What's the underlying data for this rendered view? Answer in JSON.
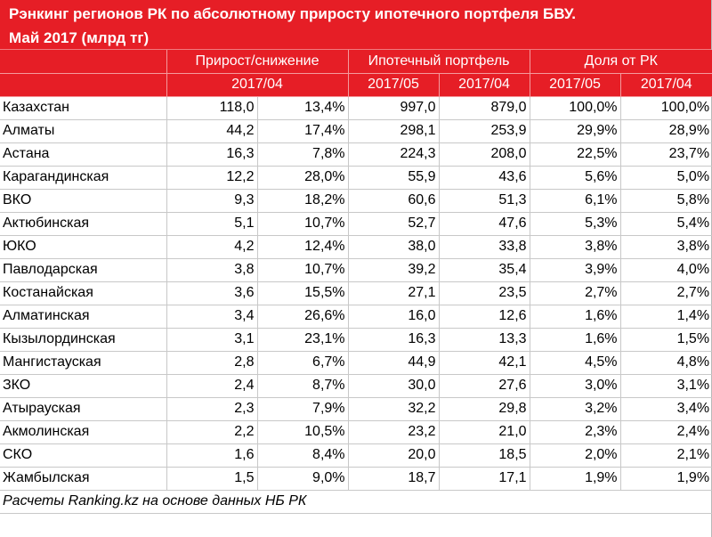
{
  "title": {
    "line1": "Рэнкинг регионов РК по абсолютному приросту ипотечного портфеля БВУ.",
    "line2": "Май 2017 (млрд тг)"
  },
  "header": {
    "group1": "Прирост/снижение",
    "group1_sub": "2017/04",
    "group2": "Ипотечный портфель",
    "group2_sub1": "2017/05",
    "group2_sub2": "2017/04",
    "group3": "Доля от РК",
    "group3_sub1": "2017/05",
    "group3_sub2": "2017/04"
  },
  "rows": [
    {
      "region": "Казахстан",
      "abs": "118,0",
      "pct": "13,4%",
      "p05": "997,0",
      "p04": "879,0",
      "s05": "100,0%",
      "s04": "100,0%"
    },
    {
      "region": "Алматы",
      "abs": "44,2",
      "pct": "17,4%",
      "p05": "298,1",
      "p04": "253,9",
      "s05": "29,9%",
      "s04": "28,9%"
    },
    {
      "region": "Астана",
      "abs": "16,3",
      "pct": "7,8%",
      "p05": "224,3",
      "p04": "208,0",
      "s05": "22,5%",
      "s04": "23,7%"
    },
    {
      "region": "Карагандинская",
      "abs": "12,2",
      "pct": "28,0%",
      "p05": "55,9",
      "p04": "43,6",
      "s05": "5,6%",
      "s04": "5,0%"
    },
    {
      "region": "ВКО",
      "abs": "9,3",
      "pct": "18,2%",
      "p05": "60,6",
      "p04": "51,3",
      "s05": "6,1%",
      "s04": "5,8%"
    },
    {
      "region": "Актюбинская",
      "abs": "5,1",
      "pct": "10,7%",
      "p05": "52,7",
      "p04": "47,6",
      "s05": "5,3%",
      "s04": "5,4%"
    },
    {
      "region": "ЮКО",
      "abs": "4,2",
      "pct": "12,4%",
      "p05": "38,0",
      "p04": "33,8",
      "s05": "3,8%",
      "s04": "3,8%"
    },
    {
      "region": "Павлодарская",
      "abs": "3,8",
      "pct": "10,7%",
      "p05": "39,2",
      "p04": "35,4",
      "s05": "3,9%",
      "s04": "4,0%"
    },
    {
      "region": "Костанайская",
      "abs": "3,6",
      "pct": "15,5%",
      "p05": "27,1",
      "p04": "23,5",
      "s05": "2,7%",
      "s04": "2,7%"
    },
    {
      "region": "Алматинская",
      "abs": "3,4",
      "pct": "26,6%",
      "p05": "16,0",
      "p04": "12,6",
      "s05": "1,6%",
      "s04": "1,4%"
    },
    {
      "region": "Кызылординская",
      "abs": "3,1",
      "pct": "23,1%",
      "p05": "16,3",
      "p04": "13,3",
      "s05": "1,6%",
      "s04": "1,5%"
    },
    {
      "region": "Мангистауская",
      "abs": "2,8",
      "pct": "6,7%",
      "p05": "44,9",
      "p04": "42,1",
      "s05": "4,5%",
      "s04": "4,8%"
    },
    {
      "region": "ЗКО",
      "abs": "2,4",
      "pct": "8,7%",
      "p05": "30,0",
      "p04": "27,6",
      "s05": "3,0%",
      "s04": "3,1%"
    },
    {
      "region": "Атырауская",
      "abs": "2,3",
      "pct": "7,9%",
      "p05": "32,2",
      "p04": "29,8",
      "s05": "3,2%",
      "s04": "3,4%"
    },
    {
      "region": "Акмолинская",
      "abs": "2,2",
      "pct": "10,5%",
      "p05": "23,2",
      "p04": "21,0",
      "s05": "2,3%",
      "s04": "2,4%"
    },
    {
      "region": "СКО",
      "abs": "1,6",
      "pct": "8,4%",
      "p05": "20,0",
      "p04": "18,5",
      "s05": "2,0%",
      "s04": "2,1%"
    },
    {
      "region": "Жамбылская",
      "abs": "1,5",
      "pct": "9,0%",
      "p05": "18,7",
      "p04": "17,1",
      "s05": "1,9%",
      "s04": "1,9%"
    }
  ],
  "footer": "Расчеты Ranking.kz на основе данных НБ РК",
  "colors": {
    "header_red": "#e61e26",
    "grid": "#c8c8c8"
  }
}
